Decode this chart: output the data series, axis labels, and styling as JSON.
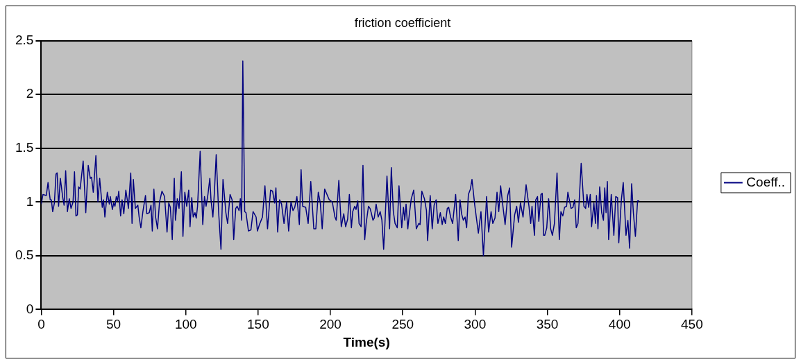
{
  "chart_data": {
    "type": "line",
    "title": "friction coefficient",
    "xlabel": "Time(s)",
    "xlim": [
      0,
      450
    ],
    "xticks": [
      0,
      50,
      100,
      150,
      200,
      250,
      300,
      350,
      400,
      450
    ],
    "ylim": [
      0,
      2.5
    ],
    "yticks": [
      0,
      0.5,
      1,
      1.5,
      2,
      2.5
    ],
    "grid": "y",
    "legend": "right",
    "marker": "none",
    "line_style": "solid",
    "series": [
      {
        "name": "Coeff..",
        "color": "#000080",
        "x": [
          0,
          1.2,
          3.5,
          4.7,
          6.2,
          7.0,
          7.9,
          9.1,
          10.2,
          11,
          12,
          13.2,
          14.9,
          15.8,
          16.9,
          18.1,
          19.4,
          20.6,
          22,
          23,
          24,
          25,
          25.9,
          26.9,
          29,
          30.8,
          32.5,
          33.9,
          34.8,
          36,
          37.8,
          39.2,
          40.4,
          42.2,
          43.1,
          44,
          45.7,
          47.1,
          47.8,
          49.2,
          50.1,
          51,
          51.9,
          52.8,
          53.6,
          54.9,
          55.9,
          57.1,
          58.5,
          59.4,
          60.3,
          61.9,
          62.8,
          63.7,
          65.1,
          66.8,
          67.7,
          68.9,
          70.3,
          72.1,
          73,
          74.7,
          75.9,
          76.8,
          77.9,
          79.1,
          80.4,
          81.8,
          83.5,
          85.3,
          87,
          88.2,
          89.3,
          90.6,
          92,
          92.8,
          94.1,
          95.3,
          96.9,
          98,
          99.3,
          100.6,
          102,
          102.9,
          104.1,
          105.1,
          106.3,
          107.2,
          108.1,
          109.9,
          111.7,
          112.9,
          114,
          115.2,
          116.6,
          117.4,
          118.7,
          119.8,
          121,
          122.7,
          124.3,
          125.7,
          127.7,
          128.9,
          130.6,
          132,
          133.1,
          134.5,
          135.5,
          136.8,
          137.7,
          138.6,
          139.4,
          140.7,
          141.6,
          143.3,
          145,
          146.5,
          148.6,
          149.5,
          150.9,
          153,
          154.7,
          156.5,
          158.6,
          160,
          161.4,
          162.3,
          163.5,
          164.8,
          166.2,
          167.9,
          169.7,
          171.1,
          172.7,
          174.1,
          175.3,
          176.8,
          178.5,
          179.7,
          180.8,
          182.9,
          184.6,
          186.4,
          188.5,
          189.9,
          191.6,
          193,
          194.3,
          196,
          199.2,
          201.3,
          203.1,
          204,
          205.8,
          207.5,
          209.2,
          210.5,
          211.9,
          213.1,
          214.5,
          215.4,
          216.8,
          217.7,
          218.9,
          219.8,
          221.2,
          222.5,
          223.7,
          224.7,
          226.3,
          227.4,
          228.2,
          229.4,
          230.3,
          231.6,
          233,
          234.4,
          235.6,
          236.8,
          237.7,
          239.1,
          240.9,
          242.1,
          243.5,
          244.7,
          246.2,
          247.4,
          249.3,
          250.5,
          251.4,
          252.3,
          253.5,
          254.6,
          255.9,
          257.6,
          259.4,
          261.1,
          262,
          263.2,
          265,
          266.4,
          267.2,
          269,
          270.4,
          271.7,
          273.1,
          274.3,
          276,
          277.3,
          278.3,
          279.5,
          280.8,
          281.8,
          283.1,
          284.5,
          286.6,
          288.4,
          289.6,
          290.7,
          291.9,
          293.1,
          294.2,
          295.4,
          296.8,
          297.9,
          299.8,
          302.3,
          304.1,
          305.8,
          308,
          309.4,
          311.1,
          312.3,
          313.8,
          315.2,
          316.4,
          317.7,
          319.1,
          320.8,
          322.6,
          323.9,
          325.3,
          327.4,
          328.8,
          330,
          331.4,
          333.2,
          335.3,
          337.3,
          338.5,
          339.4,
          341.1,
          342,
          343.2,
          344.1,
          345.6,
          346.5,
          347.4,
          348.2,
          349.6,
          350.9,
          352.3,
          353.5,
          354.9,
          356.7,
          358.3,
          359.4,
          360.7,
          361.9,
          363.3,
          364.2,
          366.4,
          367.7,
          368.9,
          370,
          371.2,
          373.4,
          375.3,
          376.5,
          377.4,
          378.6,
          379.7,
          380.6,
          382.2,
          383.3,
          384,
          385,
          386.2,
          387.6,
          388.8,
          389.7,
          390.6,
          391.5,
          392.4,
          394.2,
          396,
          397.3,
          398.6,
          399.4,
          401.2,
          402.5,
          404.4,
          405.7,
          406.9,
          408.3,
          409.5,
          410.9,
          412.4,
          413.6
        ],
        "values": [
          0.98,
          1.07,
          1.06,
          1.18,
          1.02,
          1.02,
          0.91,
          0.99,
          1.26,
          1.27,
          0.96,
          1.22,
          1.04,
          0.97,
          1.29,
          0.91,
          1.03,
          0.94,
          1.0,
          1.28,
          0.87,
          0.88,
          1.14,
          1.12,
          1.38,
          0.9,
          1.34,
          1.22,
          1.23,
          1.09,
          1.43,
          1.0,
          1.22,
          0.95,
          1.02,
          0.86,
          1.09,
          0.98,
          1.05,
          0.93,
          0.99,
          0.96,
          1.05,
          1.01,
          1.1,
          0.87,
          1.02,
          0.89,
          1.11,
          1.03,
          0.94,
          1.27,
          0.8,
          1.21,
          0.94,
          0.97,
          0.86,
          0.76,
          0.91,
          1.06,
          0.89,
          0.9,
          0.97,
          0.73,
          1.12,
          0.86,
          0.75,
          1.0,
          1.1,
          1.05,
          0.72,
          0.99,
          0.95,
          0.65,
          1.22,
          0.83,
          1.03,
          0.94,
          1.28,
          0.68,
          1.09,
          0.96,
          1.11,
          0.77,
          1.04,
          0.86,
          0.9,
          0.85,
          0.96,
          1.47,
          0.79,
          1.05,
          0.96,
          1.06,
          1.22,
          1.02,
          0.86,
          1.1,
          1.44,
          0.9,
          0.56,
          1.21,
          0.9,
          0.8,
          1.07,
          1.02,
          0.65,
          0.94,
          0.96,
          0.92,
          1.03,
          0.83,
          2.31,
          0.91,
          0.9,
          0.73,
          0.74,
          0.91,
          0.86,
          0.73,
          0.79,
          0.86,
          1.15,
          0.75,
          1.11,
          1.1,
          0.99,
          1.13,
          0.72,
          1.02,
          0.98,
          0.8,
          1.0,
          0.73,
          1.0,
          0.92,
          0.95,
          1.05,
          0.79,
          1.3,
          0.96,
          0.95,
          0.8,
          1.19,
          0.75,
          0.75,
          1.09,
          0.99,
          0.75,
          1.12,
          1.02,
          1.0,
          0.86,
          0.83,
          1.2,
          0.77,
          0.89,
          0.77,
          0.84,
          1.07,
          0.76,
          0.91,
          0.96,
          0.93,
          1.01,
          0.8,
          0.77,
          1.34,
          0.65,
          0.8,
          0.96,
          0.94,
          0.9,
          0.83,
          0.85,
          0.98,
          0.86,
          0.91,
          0.83,
          0.56,
          0.8,
          1.24,
          0.75,
          1.32,
          0.91,
          0.8,
          0.76,
          1.15,
          0.76,
          0.95,
          0.83,
          0.98,
          0.75,
          0.89,
          1.03,
          1.11,
          0.75,
          0.8,
          0.79,
          1.1,
          1.03,
          0.92,
          0.64,
          1.06,
          0.75,
          0.97,
          1.02,
          0.8,
          0.9,
          0.79,
          0.86,
          0.8,
          0.94,
          0.95,
          0.86,
          0.8,
          1.07,
          0.64,
          1.02,
          0.89,
          0.83,
          0.86,
          0.76,
          1.07,
          1.12,
          1.21,
          0.97,
          0.71,
          0.91,
          0.5,
          1.05,
          0.72,
          0.91,
          0.8,
          0.85,
          1.09,
          0.91,
          1.15,
          0.98,
          0.79,
          1.06,
          1.13,
          0.58,
          0.88,
          0.96,
          0.81,
          0.99,
          0.86,
          1.16,
          0.96,
          0.8,
          0.96,
          0.69,
          1.02,
          1.05,
          0.82,
          1.07,
          1.08,
          0.69,
          0.69,
          0.76,
          1.03,
          0.75,
          0.69,
          0.8,
          1.27,
          0.65,
          0.91,
          0.87,
          0.95,
          0.96,
          1.09,
          0.94,
          0.95,
          1.02,
          0.76,
          0.8,
          1.36,
          0.96,
          0.94,
          1.07,
          0.95,
          1.07,
          0.77,
          0.99,
          0.8,
          1.06,
          0.75,
          1.14,
          0.9,
          0.83,
          1.13,
          0.9,
          1.19,
          0.65,
          1.07,
          0.69,
          1.05,
          1.04,
          0.62,
          1.02,
          1.18,
          0.69,
          0.83,
          0.57,
          1.17,
          0.9,
          0.68,
          1.01,
          1.01
        ]
      }
    ]
  }
}
